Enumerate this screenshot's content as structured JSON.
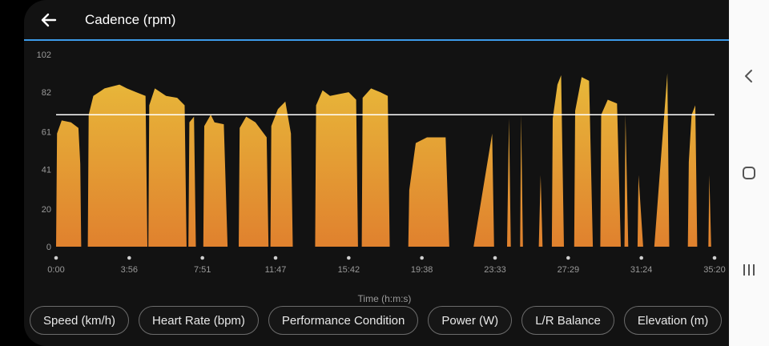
{
  "header": {
    "title": "Cadence (rpm)"
  },
  "chart_data": {
    "type": "area",
    "title": "Cadence (rpm)",
    "xlabel": "Time (h:m:s)",
    "ylabel": "",
    "x_tick_labels": [
      "0:00",
      "3:56",
      "7:51",
      "11:47",
      "15:42",
      "19:38",
      "23:33",
      "27:29",
      "31:24",
      "35:20"
    ],
    "y_tick_labels": [
      "102",
      "82",
      "61",
      "41",
      "20",
      "0"
    ],
    "y_tick_values": [
      102,
      82,
      61,
      41,
      20,
      0
    ],
    "ylim": [
      0,
      102
    ],
    "xlim_minutes": [
      0,
      35.33
    ],
    "average_line": 70,
    "series": [
      {
        "values": [
          [
            0.0,
            0
          ],
          [
            0.05,
            60
          ],
          [
            0.3,
            67
          ],
          [
            0.8,
            66
          ],
          [
            1.2,
            63
          ],
          [
            1.3,
            44
          ],
          [
            1.35,
            0
          ],
          [
            1.7,
            0
          ],
          [
            1.75,
            70
          ],
          [
            2.0,
            80
          ],
          [
            2.3,
            82
          ],
          [
            2.6,
            84
          ],
          [
            3.0,
            85
          ],
          [
            3.4,
            86
          ],
          [
            3.8,
            84
          ],
          [
            4.3,
            82
          ],
          [
            4.8,
            80
          ],
          [
            4.9,
            0
          ],
          [
            4.95,
            0
          ],
          [
            5.0,
            75
          ],
          [
            5.3,
            84
          ],
          [
            5.9,
            80
          ],
          [
            6.5,
            79
          ],
          [
            6.9,
            75
          ],
          [
            7.0,
            0
          ],
          [
            7.1,
            0
          ],
          [
            7.15,
            66
          ],
          [
            7.4,
            69
          ],
          [
            7.5,
            0
          ],
          [
            7.9,
            0
          ],
          [
            7.95,
            64
          ],
          [
            8.3,
            70
          ],
          [
            8.5,
            66
          ],
          [
            9.0,
            65
          ],
          [
            9.2,
            0
          ],
          [
            9.8,
            0
          ],
          [
            9.85,
            63
          ],
          [
            10.2,
            69
          ],
          [
            10.7,
            66
          ],
          [
            11.0,
            62
          ],
          [
            11.3,
            58
          ],
          [
            11.4,
            0
          ],
          [
            11.5,
            0
          ],
          [
            11.55,
            64
          ],
          [
            11.9,
            73
          ],
          [
            12.3,
            77
          ],
          [
            12.6,
            60
          ],
          [
            12.7,
            0
          ],
          [
            13.9,
            0
          ],
          [
            13.95,
            75
          ],
          [
            14.3,
            83
          ],
          [
            14.7,
            80
          ],
          [
            15.2,
            81
          ],
          [
            15.7,
            82
          ],
          [
            16.1,
            78
          ],
          [
            16.2,
            0
          ],
          [
            16.4,
            0
          ],
          [
            16.45,
            79
          ],
          [
            16.9,
            84
          ],
          [
            17.4,
            82
          ],
          [
            17.8,
            80
          ],
          [
            17.9,
            0
          ],
          [
            18.9,
            0
          ],
          [
            18.95,
            30
          ],
          [
            19.3,
            55
          ],
          [
            19.9,
            58
          ],
          [
            20.5,
            58
          ],
          [
            20.9,
            58
          ],
          [
            21.1,
            0
          ],
          [
            22.4,
            0
          ],
          [
            23.4,
            60
          ],
          [
            23.5,
            0
          ],
          [
            24.2,
            0
          ],
          [
            24.3,
            68
          ],
          [
            24.4,
            0
          ],
          [
            24.9,
            0
          ],
          [
            24.95,
            70
          ],
          [
            25.05,
            0
          ],
          [
            25.9,
            0
          ],
          [
            26.0,
            38
          ],
          [
            26.1,
            0
          ],
          [
            26.6,
            0
          ],
          [
            26.65,
            68
          ],
          [
            26.9,
            86
          ],
          [
            27.1,
            91
          ],
          [
            27.25,
            0
          ],
          [
            27.8,
            0
          ],
          [
            27.85,
            72
          ],
          [
            28.2,
            90
          ],
          [
            28.6,
            88
          ],
          [
            28.8,
            0
          ],
          [
            29.2,
            0
          ],
          [
            29.25,
            70
          ],
          [
            29.6,
            78
          ],
          [
            30.1,
            76
          ],
          [
            30.3,
            0
          ],
          [
            30.5,
            0
          ],
          [
            30.55,
            70
          ],
          [
            30.7,
            0
          ],
          [
            31.2,
            0
          ],
          [
            31.25,
            38
          ],
          [
            31.5,
            0
          ],
          [
            32.1,
            0
          ],
          [
            32.8,
            92
          ],
          [
            32.9,
            0
          ],
          [
            33.9,
            0
          ],
          [
            33.95,
            45
          ],
          [
            34.1,
            70
          ],
          [
            34.3,
            75
          ],
          [
            34.4,
            0
          ],
          [
            35.0,
            0
          ],
          [
            35.05,
            38
          ],
          [
            35.15,
            0
          ]
        ]
      }
    ]
  },
  "chips": [
    "Speed (km/h)",
    "Heart Rate (bpm)",
    "Performance Condition",
    "Power (W)",
    "L/R Balance",
    "Elevation (m)"
  ],
  "colors": {
    "accent": "#3d9be9",
    "fill_top": "#e8b93a",
    "fill_bottom": "#e0812e",
    "avg_line": "#ffffff"
  }
}
